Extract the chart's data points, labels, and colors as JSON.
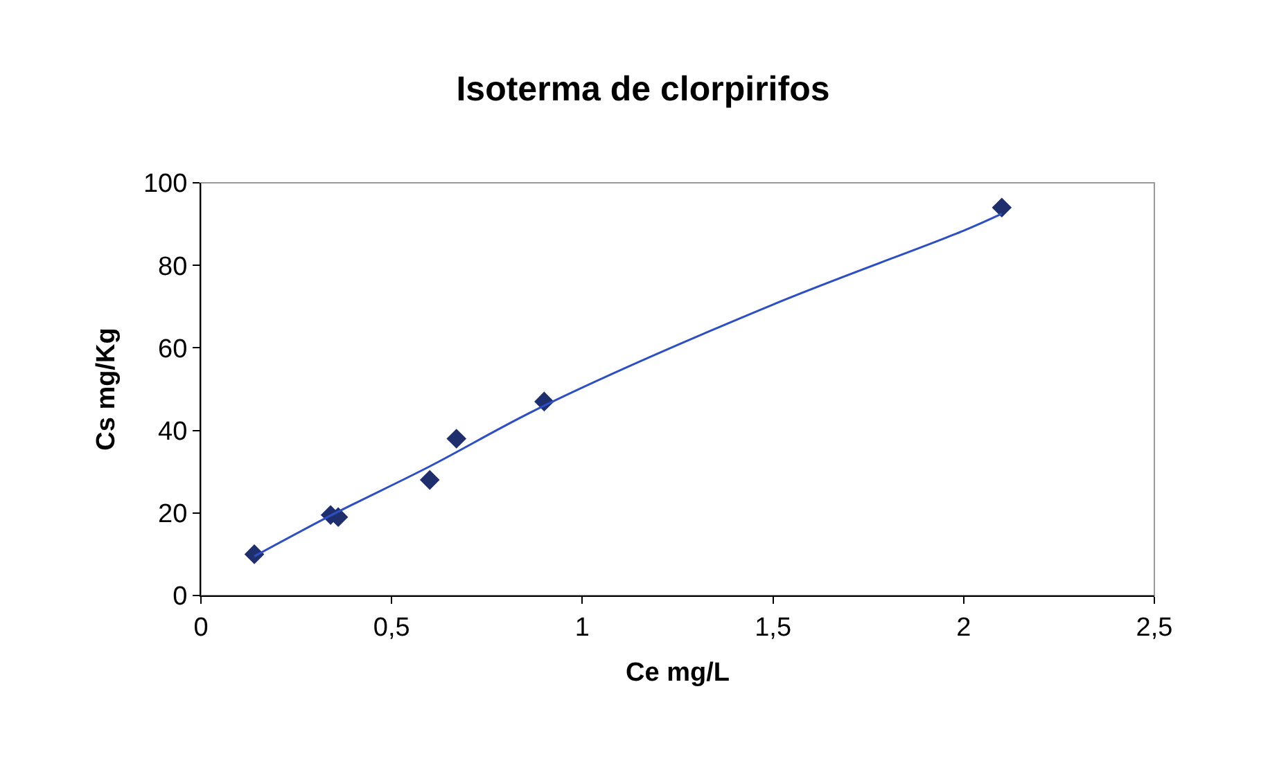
{
  "chart_data": {
    "type": "scatter",
    "title": "Isoterma de clorpirifos",
    "xlabel": "Ce mg/L",
    "ylabel": "Cs mg/Kg",
    "xlim": [
      0,
      2.5
    ],
    "xticks": [
      0,
      {
        "value": 0.5,
        "label": "0,5"
      },
      1,
      {
        "value": 1.5,
        "label": "1,5"
      },
      2,
      {
        "value": 2.5,
        "label": "2,5"
      }
    ],
    "ylim": [
      0,
      100
    ],
    "yticks": [
      0,
      20,
      40,
      60,
      80,
      100
    ],
    "grid": false,
    "marker": "diamond",
    "series": [
      {
        "color": "#1f2f6e",
        "x": [
          0.14,
          0.34,
          0.36,
          0.6,
          0.67,
          0.9,
          2.1
        ],
        "values": [
          10,
          19.5,
          19,
          28,
          38,
          47,
          94
        ]
      },
      {
        "type": "line",
        "color": "#2e4fc0",
        "marker": "none",
        "x": [
          0.14,
          0.345,
          0.6,
          0.9,
          1.5,
          2.0,
          2.1
        ],
        "values": [
          9.5,
          19.6,
          31.3,
          46,
          70.5,
          88.4,
          92.5
        ]
      }
    ]
  }
}
